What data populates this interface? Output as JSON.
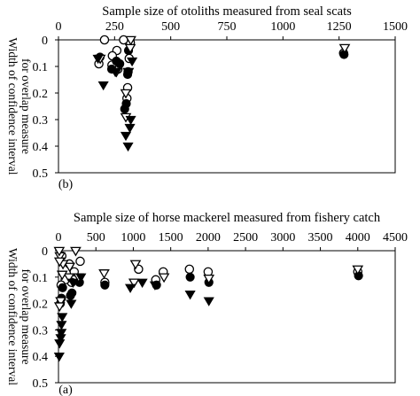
{
  "chart_data": [
    {
      "panel_label": "(b)",
      "type": "scatter",
      "xlabel": "Sample size of otoliths measured from seal scats",
      "ylabel": "Width of confidence interval for overlap measure",
      "xlim": [
        0,
        1500
      ],
      "ylim": [
        0,
        0.5
      ],
      "x_ticks": [
        "0",
        "250",
        "500",
        "750",
        "1000",
        "1250",
        "1500"
      ],
      "y_ticks": [
        "0",
        "0.1",
        "0.2",
        "0.3",
        "0.4",
        "0.5"
      ],
      "series": [
        {
          "marker": "open-circle",
          "points": [
            [
              320,
              0.01
            ],
            [
              315,
              0.07
            ],
            [
              310,
              0.12
            ],
            [
              308,
              0.18
            ],
            [
              305,
              0.22
            ],
            [
              290,
              0.0
            ],
            [
              265,
              0.11
            ],
            [
              260,
              0.04
            ],
            [
              240,
              0.06
            ],
            [
              238,
              0.095
            ],
            [
              205,
              0.0
            ],
            [
              180,
              0.09
            ],
            [
              1270,
              0.05
            ]
          ]
        },
        {
          "marker": "filled-circle",
          "points": [
            [
              312,
              0.04
            ],
            [
              308,
              0.13
            ],
            [
              302,
              0.24
            ],
            [
              295,
              0.26
            ],
            [
              273,
              0.09
            ],
            [
              258,
              0.08
            ],
            [
              237,
              0.11
            ],
            [
              185,
              0.065
            ],
            [
              1272,
              0.055
            ]
          ]
        },
        {
          "marker": "open-triangle",
          "points": [
            [
              322,
              0.0
            ],
            [
              320,
              0.03
            ],
            [
              312,
              0.12
            ],
            [
              300,
              0.2
            ],
            [
              300,
              0.29
            ],
            [
              258,
              0.12
            ],
            [
              186,
              0.07
            ],
            [
              1275,
              0.03
            ]
          ]
        },
        {
          "marker": "filled-triangle",
          "points": [
            [
              328,
              0.08
            ],
            [
              310,
              0.12
            ],
            [
              322,
              0.3
            ],
            [
              318,
              0.33
            ],
            [
              300,
              0.36
            ],
            [
              310,
              0.4
            ],
            [
              200,
              0.17
            ],
            [
              253,
              0.12
            ],
            [
              176,
              0.07
            ]
          ]
        }
      ]
    },
    {
      "panel_label": "(a)",
      "type": "scatter",
      "xlabel": "Sample size of horse mackerel measured from fishery catch",
      "ylabel": "Width of confidence interval for overlap measure",
      "xlim": [
        0,
        4500
      ],
      "ylim": [
        0,
        0.5
      ],
      "x_ticks": [
        "0",
        "500",
        "1000",
        "1500",
        "2000",
        "2500",
        "3000",
        "3500",
        "4000",
        "4500"
      ],
      "y_ticks": [
        "0",
        "0.1",
        "0.2",
        "0.3",
        "0.4",
        "0.5"
      ],
      "series": [
        {
          "marker": "open-circle",
          "points": [
            [
              4000,
              0.08
            ],
            [
              2000,
              0.08
            ],
            [
              1750,
              0.07
            ],
            [
              1400,
              0.08
            ],
            [
              1300,
              0.11
            ],
            [
              1070,
              0.07
            ],
            [
              620,
              0.12
            ],
            [
              290,
              0.04
            ],
            [
              210,
              0.08
            ],
            [
              175,
              0.12
            ],
            [
              145,
              0.05
            ],
            [
              90,
              0.11
            ],
            [
              45,
              0.02
            ],
            [
              35,
              0.13
            ]
          ]
        },
        {
          "marker": "filled-circle",
          "points": [
            [
              4010,
              0.095
            ],
            [
              2010,
              0.12
            ],
            [
              1760,
              0.1
            ],
            [
              1310,
              0.13
            ],
            [
              620,
              0.13
            ],
            [
              280,
              0.12
            ],
            [
              180,
              0.16
            ],
            [
              160,
              0.17
            ],
            [
              55,
              0.14
            ],
            [
              40,
              0.18
            ],
            [
              25,
              0.2
            ]
          ]
        },
        {
          "marker": "open-triangle",
          "points": [
            [
              4000,
              0.07
            ],
            [
              2010,
              0.105
            ],
            [
              1410,
              0.1
            ],
            [
              1030,
              0.05
            ],
            [
              1010,
              0.12
            ],
            [
              610,
              0.085
            ],
            [
              270,
              0.1
            ],
            [
              230,
              0.0
            ],
            [
              150,
              0.06
            ],
            [
              140,
              0.1
            ],
            [
              60,
              0.05
            ],
            [
              50,
              0.09
            ],
            [
              30,
              0.19
            ],
            [
              20,
              0.02
            ],
            [
              15,
              0.04
            ],
            [
              15,
              0.21
            ],
            [
              10,
              0.0
            ]
          ]
        },
        {
          "marker": "filled-triangle",
          "points": [
            [
              2010,
              0.19
            ],
            [
              1760,
              0.165
            ],
            [
              1290,
              0.13
            ],
            [
              1120,
              0.12
            ],
            [
              960,
              0.14
            ],
            [
              300,
              0.1
            ],
            [
              195,
              0.12
            ],
            [
              170,
              0.2
            ],
            [
              50,
              0.25
            ],
            [
              40,
              0.28
            ],
            [
              38,
              0.31
            ],
            [
              30,
              0.33
            ],
            [
              15,
              0.35
            ],
            [
              10,
              0.4
            ]
          ]
        }
      ]
    }
  ]
}
